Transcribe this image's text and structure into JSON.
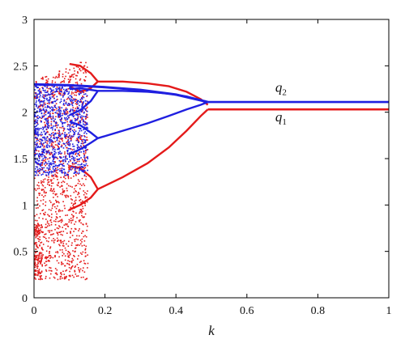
{
  "chart_data": {
    "type": "scatter",
    "title": "",
    "xlabel": "k",
    "ylabel": "",
    "xlim": [
      0,
      1
    ],
    "ylim": [
      0,
      3
    ],
    "x_ticks": [
      "0",
      "0.2",
      "0.4",
      "0.6",
      "0.8",
      "1"
    ],
    "y_ticks": [
      "0",
      "0.5",
      "1",
      "1.5",
      "2",
      "2.5",
      "3"
    ],
    "grid": false,
    "legend": "none",
    "colors": {
      "q1": "#e41a1a",
      "q2": "#1f1fe0"
    },
    "annotations": [
      {
        "name": "q2",
        "base": "q",
        "sub": "2",
        "x": 0.68,
        "y": 2.22
      },
      {
        "name": "q1",
        "base": "q",
        "sub": "1",
        "x": 0.68,
        "y": 1.9
      }
    ],
    "series": [
      {
        "name": "q1",
        "color": "#e41a1a",
        "steady_state": {
          "x_from": 0.49,
          "x_to": 1.0,
          "y": 2.03
        },
        "period2_upper": {
          "x": [
            0.18,
            0.25,
            0.32,
            0.38,
            0.43,
            0.47,
            0.49
          ],
          "y": [
            2.33,
            2.33,
            2.31,
            2.28,
            2.22,
            2.14,
            2.08
          ]
        },
        "period2_lower": {
          "x": [
            0.18,
            0.25,
            0.32,
            0.38,
            0.43,
            0.47,
            0.49
          ],
          "y": [
            1.17,
            1.3,
            1.45,
            1.62,
            1.8,
            1.96,
            2.03
          ]
        },
        "period4_branches": [
          {
            "x": [
              0.1,
              0.13,
              0.16,
              0.18
            ],
            "y": [
              2.28,
              2.22,
              2.26,
              2.33
            ]
          },
          {
            "x": [
              0.1,
              0.13,
              0.16,
              0.18
            ],
            "y": [
              2.52,
              2.5,
              2.42,
              2.33
            ]
          },
          {
            "x": [
              0.1,
              0.13,
              0.16,
              0.18
            ],
            "y": [
              1.42,
              1.4,
              1.3,
              1.17
            ]
          },
          {
            "x": [
              0.1,
              0.13,
              0.16,
              0.18
            ],
            "y": [
              0.95,
              1.0,
              1.08,
              1.17
            ]
          }
        ],
        "chaotic_band": {
          "x_from": 0.0,
          "x_to": 0.15,
          "y_from": 0.2,
          "y_to": 2.58
        }
      },
      {
        "name": "q2",
        "color": "#1f1fe0",
        "steady_state": {
          "x_from": 0.49,
          "x_to": 1.0,
          "y": 2.11
        },
        "period2_upper": {
          "x": [
            0.18,
            0.25,
            0.32,
            0.38,
            0.43,
            0.47,
            0.49
          ],
          "y": [
            2.23,
            2.23,
            2.22,
            2.2,
            2.17,
            2.13,
            2.11
          ]
        },
        "period2_lower": {
          "x": [
            0.18,
            0.25,
            0.32,
            0.38,
            0.43,
            0.47,
            0.49
          ],
          "y": [
            1.72,
            1.8,
            1.88,
            1.96,
            2.03,
            2.08,
            2.11
          ]
        },
        "period4_branches": [
          {
            "x": [
              0.1,
              0.13,
              0.16,
              0.18
            ],
            "y": [
              1.97,
              2.02,
              2.12,
              2.23
            ]
          },
          {
            "x": [
              0.1,
              0.13,
              0.16,
              0.18
            ],
            "y": [
              2.25,
              2.26,
              2.24,
              2.23
            ]
          },
          {
            "x": [
              0.1,
              0.13,
              0.16,
              0.18
            ],
            "y": [
              1.9,
              1.86,
              1.78,
              1.72
            ]
          },
          {
            "x": [
              0.1,
              0.13,
              0.16,
              0.18
            ],
            "y": [
              1.55,
              1.6,
              1.67,
              1.72
            ]
          }
        ],
        "top_band": {
          "x": [
            0.0,
            0.1,
            0.2,
            0.3,
            0.4,
            0.49
          ],
          "y": [
            2.3,
            2.29,
            2.27,
            2.24,
            2.19,
            2.11
          ]
        },
        "chaotic_band": {
          "x_from": 0.0,
          "x_to": 0.15,
          "y_from": 1.0,
          "y_to": 2.3
        }
      }
    ]
  }
}
